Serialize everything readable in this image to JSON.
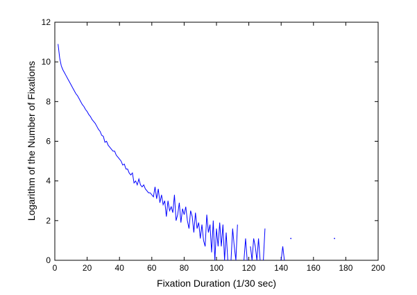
{
  "chart_data": {
    "type": "line",
    "xlabel": "Fixation Duration (1/30 sec)",
    "ylabel": "Logarithm of the Number of Fixations",
    "xlim": [
      0,
      200
    ],
    "xticks": [
      0,
      20,
      40,
      60,
      80,
      100,
      120,
      140,
      160,
      180,
      200
    ],
    "ylim": [
      0,
      12
    ],
    "yticks": [
      0,
      2,
      4,
      6,
      8,
      10,
      12
    ],
    "x": [
      2,
      3,
      4,
      5,
      6,
      7,
      8,
      9,
      10,
      11,
      12,
      13,
      14,
      15,
      16,
      17,
      18,
      19,
      20,
      21,
      22,
      23,
      24,
      25,
      26,
      27,
      28,
      29,
      30,
      31,
      32,
      33,
      34,
      35,
      36,
      37,
      38,
      39,
      40,
      41,
      42,
      43,
      44,
      45,
      46,
      47,
      48,
      49,
      50,
      51,
      52,
      53,
      54,
      55,
      56,
      57,
      58,
      59,
      60,
      61,
      62,
      63,
      64,
      65,
      66,
      67,
      68,
      69,
      70,
      71,
      72,
      73,
      74,
      75,
      76,
      77,
      78,
      79,
      80,
      81,
      82,
      83,
      84,
      85,
      86,
      87,
      88,
      89,
      90,
      91,
      92,
      93,
      94,
      95,
      96,
      97,
      98,
      99,
      100,
      101,
      102,
      103,
      104,
      105,
      106,
      107,
      108,
      109,
      110,
      111,
      112,
      113,
      114,
      115,
      116,
      117,
      118,
      119,
      120,
      121,
      122,
      123,
      124,
      125,
      126,
      127,
      128,
      129,
      130,
      131,
      132,
      133,
      134,
      135,
      136,
      137,
      138,
      139,
      140,
      141,
      142,
      143,
      146,
      150,
      173
    ],
    "series": [
      {
        "color": "#0000ff",
        "values": [
          10.9,
          10.2,
          9.8,
          9.6,
          9.45,
          9.3,
          9.15,
          9.0,
          8.85,
          8.7,
          8.55,
          8.4,
          8.3,
          8.15,
          8.0,
          7.85,
          7.75,
          7.6,
          7.5,
          7.35,
          7.25,
          7.1,
          7.0,
          6.9,
          6.75,
          6.6,
          6.5,
          6.3,
          6.25,
          5.95,
          6.0,
          5.8,
          5.7,
          5.6,
          5.5,
          5.5,
          5.3,
          5.2,
          5.1,
          5.0,
          4.8,
          4.85,
          4.6,
          4.6,
          4.4,
          4.3,
          4.4,
          3.9,
          4.0,
          3.8,
          4.1,
          3.8,
          3.7,
          3.8,
          3.6,
          3.5,
          3.4,
          3.4,
          3.3,
          3.2,
          3.7,
          3.1,
          3.6,
          2.9,
          3.3,
          2.8,
          3.0,
          2.2,
          3.0,
          2.5,
          2.7,
          2.4,
          3.3,
          2.0,
          2.3,
          2.9,
          1.9,
          2.6,
          2.3,
          2.7,
          2.0,
          1.6,
          2.5,
          2.2,
          1.4,
          2.4,
          1.6,
          1.9,
          1.1,
          1.8,
          1.0,
          0.7,
          2.3,
          1.4,
          1.8,
          0.4,
          2.0,
          0.0,
          1.6,
          0.7,
          1.9,
          0.7,
          1.8,
          0.0,
          1.4,
          0.0,
          null,
          0.0,
          1.6,
          0.7,
          0.0,
          1.8,
          null,
          null,
          null,
          0.0,
          1.1,
          0.0,
          null,
          0.7,
          0.0,
          1.1,
          0.7,
          0.0,
          1.1,
          0.0,
          null,
          0.0,
          1.6,
          null,
          null,
          null,
          null,
          null,
          null,
          null,
          null,
          null,
          0.0,
          0.7,
          0.0,
          null,
          1.1,
          null,
          1.1
        ]
      }
    ]
  }
}
